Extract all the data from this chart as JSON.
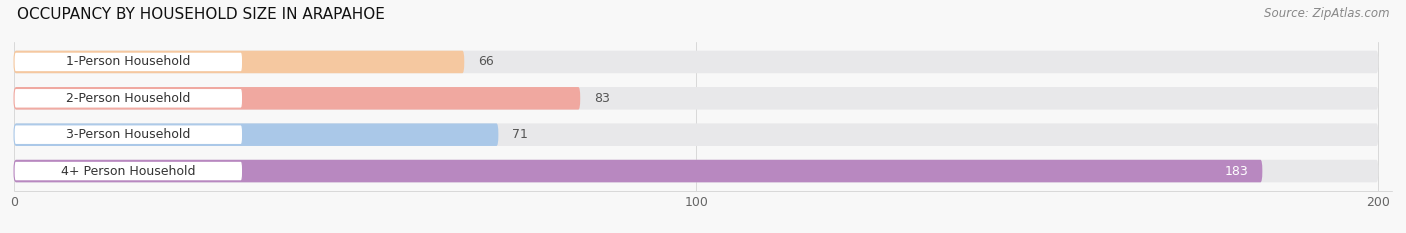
{
  "title": "OCCUPANCY BY HOUSEHOLD SIZE IN ARAPAHOE",
  "source": "Source: ZipAtlas.com",
  "categories": [
    "1-Person Household",
    "2-Person Household",
    "3-Person Household",
    "4+ Person Household"
  ],
  "values": [
    66,
    83,
    71,
    183
  ],
  "bar_colors": [
    "#f5c8a0",
    "#f0a8a0",
    "#aac8e8",
    "#b888c0"
  ],
  "bar_bg_color": "#e8e8ea",
  "label_bg_color": "#ffffff",
  "xlim_min": 0,
  "xlim_max": 200,
  "xticks": [
    0,
    100,
    200
  ],
  "bar_height": 0.62,
  "figsize": [
    14.06,
    2.33
  ],
  "dpi": 100,
  "title_fontsize": 11,
  "label_fontsize": 9,
  "value_fontsize": 9,
  "source_fontsize": 8.5,
  "background_color": "#f8f8f8"
}
